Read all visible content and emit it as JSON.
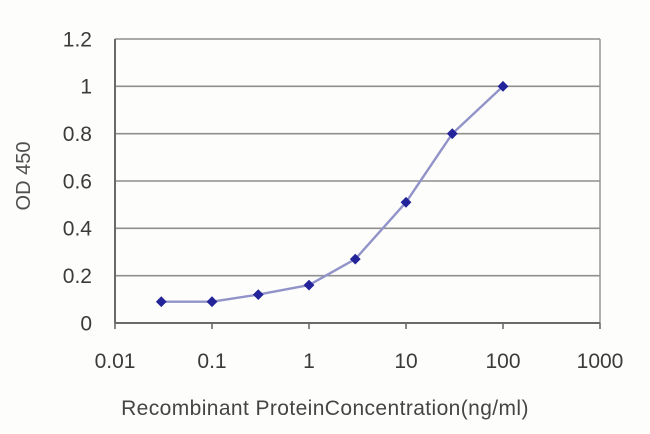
{
  "chart_data": {
    "type": "line",
    "title": "",
    "xlabel": "Recombinant ProteinConcentration(ng/ml)",
    "ylabel": "OD 450",
    "x_scale": "log",
    "xlim": [
      0.01,
      1000
    ],
    "ylim": [
      0,
      1.2
    ],
    "x_ticks": [
      0.01,
      0.1,
      1,
      10,
      100,
      1000
    ],
    "x_tick_labels": [
      "0.01",
      "0.1",
      "1",
      "10",
      "100",
      "1000"
    ],
    "y_ticks": [
      0,
      0.2,
      0.4,
      0.6,
      0.8,
      1,
      1.2
    ],
    "y_tick_labels": [
      "0",
      "0.2",
      "0.4",
      "0.6",
      "0.8",
      "1",
      "1.2"
    ],
    "grid": "horizontal",
    "legend": "none",
    "series": [
      {
        "name": "OD 450",
        "x": [
          0.03,
          0.1,
          0.3,
          1,
          3,
          10,
          30,
          100
        ],
        "y": [
          0.09,
          0.09,
          0.12,
          0.16,
          0.27,
          0.51,
          0.8,
          1.0
        ],
        "line_color": "#9193c9",
        "marker": "diamond",
        "marker_color": "#23239a"
      }
    ],
    "colors": {
      "background": "#fdfdfb",
      "gridline": "#8f8f8f",
      "axis": "#6a6a6a"
    }
  }
}
